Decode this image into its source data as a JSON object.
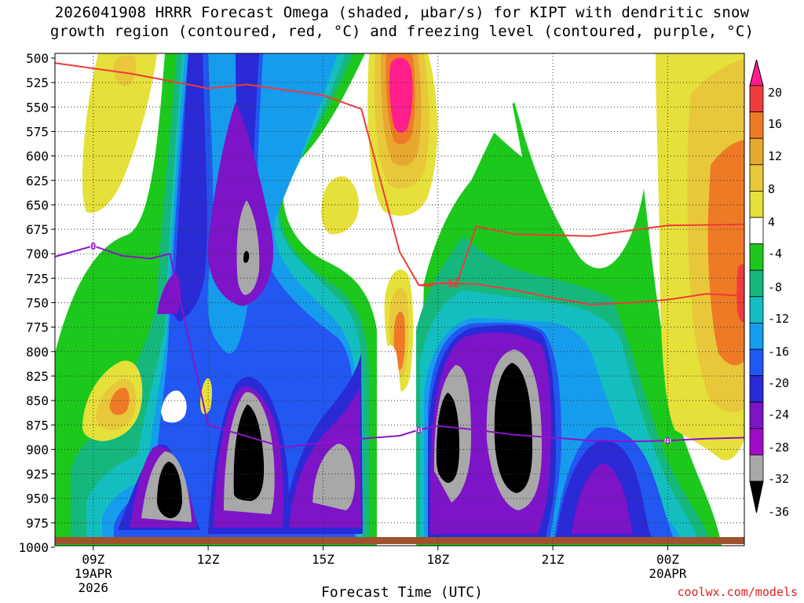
{
  "chart_data": {
    "type": "heatmap",
    "title": "2026041908 HRRR Forecast Omega (shaded, μbar/s) for KIPT with dendritic snow\ngrowth region (contoured, red, °C) and freezing level (contoured, purple, °C)",
    "xlabel": "Forecast Time (UTC)",
    "ylabel": "",
    "credit": "coolwx.com/models",
    "y_axis": {
      "ticks": [
        500,
        525,
        550,
        575,
        600,
        625,
        650,
        675,
        700,
        725,
        750,
        775,
        800,
        825,
        850,
        875,
        900,
        925,
        950,
        975,
        1000
      ],
      "ylim": [
        1000,
        500
      ],
      "units": "hPa (pressure)"
    },
    "x_axis": {
      "xlim": [
        "2026-04-19 08:00Z",
        "2026-04-20 02:00Z"
      ],
      "ticks": [
        {
          "time": "2026-04-19 09Z",
          "lines": [
            "09Z",
            "19APR",
            "2026"
          ]
        },
        {
          "time": "2026-04-19 12Z",
          "lines": [
            "12Z"
          ]
        },
        {
          "time": "2026-04-19 15Z",
          "lines": [
            "15Z"
          ]
        },
        {
          "time": "2026-04-19 18Z",
          "lines": [
            "18Z"
          ]
        },
        {
          "time": "2026-04-19 21Z",
          "lines": [
            "21Z"
          ]
        },
        {
          "time": "2026-04-20 00Z",
          "lines": [
            "00Z",
            "20APR"
          ]
        }
      ]
    },
    "colorbar": {
      "levels": [
        20,
        16,
        12,
        8,
        4,
        -4,
        -8,
        -12,
        -16,
        -20,
        -24,
        -28,
        -32,
        -36
      ],
      "colors": [
        "#ff1e8c",
        "#f03c3c",
        "#ef7a26",
        "#e7a830",
        "#e8c83a",
        "#e6e03a",
        "#ffffff",
        "#1dc81d",
        "#16b77d",
        "#14bec0",
        "#169ced",
        "#2257f2",
        "#2a2ad6",
        "#7d14c8",
        "#a00ac8",
        "#a8a8a8",
        "#000000"
      ]
    },
    "omega_cells": [
      {
        "x": "09:10",
        "p": 990,
        "omega": -4
      },
      {
        "x": "10:45",
        "p": 930,
        "omega": -36
      },
      {
        "x": "13:00",
        "p": 860,
        "omega": -36
      },
      {
        "x": "13:00",
        "p": 660,
        "omega": -32
      },
      {
        "x": "15:20",
        "p": 910,
        "omega": -32
      },
      {
        "x": "18:10",
        "p": 840,
        "omega": -36
      },
      {
        "x": "19:50",
        "p": 860,
        "omega": -36
      },
      {
        "x": "22:00",
        "p": 920,
        "omega": -28
      },
      {
        "x": "17:00",
        "p": 530,
        "omega": 20
      },
      {
        "x": "17:00",
        "p": 760,
        "omega": 16
      },
      {
        "x": "10:00",
        "p": 815,
        "omega": 12
      },
      {
        "x": "01:50",
        "p": 690,
        "omega": 12
      },
      {
        "x": "12:00",
        "p": 810,
        "omega": 8
      },
      {
        "x": "09:30",
        "p": 520,
        "omega": 8
      },
      {
        "x": "19:40",
        "p": 520,
        "omega": 4
      }
    ],
    "series": [
      {
        "name": "dendritic snow growth region (-12 °C)",
        "color": "#ee3b3b",
        "label": "-12",
        "x": [
          "08:00",
          "10:00",
          "12:00",
          "13:00",
          "15:00",
          "16:00",
          "17:00",
          "17:30",
          "17:45",
          "18:00",
          "18:30",
          "19:00",
          "20:00",
          "22:00",
          "22:30",
          "00:00",
          "02:00"
        ],
        "y": [
          505,
          516,
          531,
          527,
          538,
          552,
          698,
          732,
          733,
          730,
          730,
          672,
          680,
          682,
          679,
          671,
          670
        ]
      },
      {
        "name": "dendritic snow growth region (-18 °C)",
        "color": "#ee3b3b",
        "label": "",
        "x": [
          "17:30",
          "18:00",
          "19:00",
          "20:00",
          "21:00",
          "22:00",
          "23:00",
          "00:00",
          "01:00",
          "02:00"
        ],
        "y": [
          732,
          730,
          731,
          737,
          745,
          752,
          750,
          747,
          741,
          743
        ]
      },
      {
        "name": "freezing level (0 °C)",
        "color": "#8c14c8",
        "label": "0",
        "x": [
          "08:00",
          "09:00",
          "09:45",
          "10:30",
          "11:00",
          "12:00",
          "14:00",
          "15:00",
          "16:00",
          "17:00",
          "17:30",
          "18:00",
          "19:00",
          "20:00",
          "21:00",
          "22:00",
          "23:00",
          "00:00",
          "01:00",
          "02:00"
        ],
        "y": [
          703,
          692,
          702,
          705,
          700,
          875,
          898,
          893,
          889,
          886,
          880,
          876,
          880,
          885,
          888,
          891,
          892,
          891,
          889,
          888
        ]
      }
    ]
  }
}
